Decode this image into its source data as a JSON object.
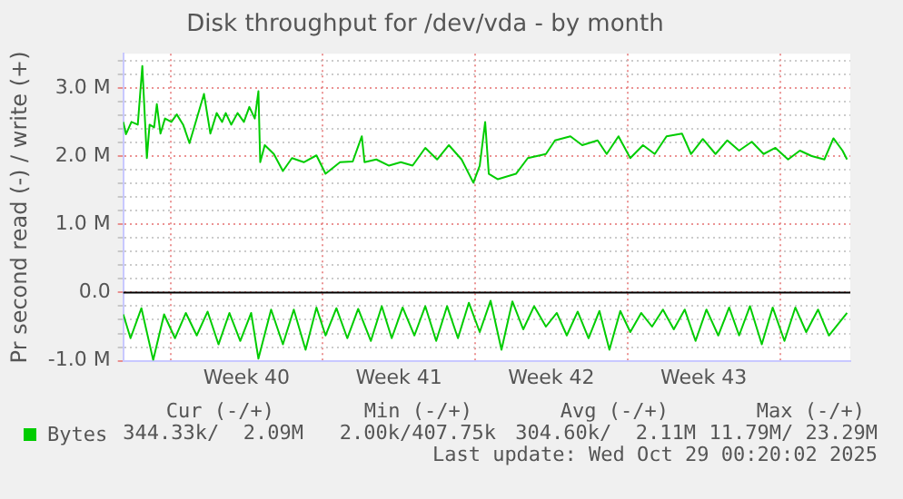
{
  "chart_data": {
    "type": "line",
    "title": "Disk throughput for /dev/vda - by month",
    "ylabel": "Pr second read (-) / write (+)",
    "xlim": [
      "2025-09-25T20:00",
      "2025-10-29T05:36"
    ],
    "ylim": [
      -1.0,
      3.5
    ],
    "xticks": [
      {
        "value": "2025-09-28",
        "label": null
      },
      {
        "value": "2025-10-01T12:00",
        "label": "Week 40"
      },
      {
        "value": "2025-10-05",
        "label": null
      },
      {
        "value": "2025-10-08T12:00",
        "label": "Week 41"
      },
      {
        "value": "2025-10-12",
        "label": null
      },
      {
        "value": "2025-10-15T12:00",
        "label": "Week 42"
      },
      {
        "value": "2025-10-19",
        "label": null
      },
      {
        "value": "2025-10-22T12:00",
        "label": "Week 43"
      },
      {
        "value": "2025-10-26",
        "label": null
      }
    ],
    "yticks": [
      {
        "value": -1.0,
        "label": "-1.0 M"
      },
      {
        "value": -0.8,
        "label": null
      },
      {
        "value": -0.6,
        "label": null
      },
      {
        "value": -0.4,
        "label": null
      },
      {
        "value": -0.2,
        "label": null
      },
      {
        "value": 0,
        "label": "0.0"
      },
      {
        "value": 0.2,
        "label": null
      },
      {
        "value": 0.4,
        "label": null
      },
      {
        "value": 0.6,
        "label": null
      },
      {
        "value": 0.8,
        "label": null
      },
      {
        "value": 1.0,
        "label": "1.0 M"
      },
      {
        "value": 1.2,
        "label": null
      },
      {
        "value": 1.4,
        "label": null
      },
      {
        "value": 1.6,
        "label": null
      },
      {
        "value": 1.8,
        "label": null
      },
      {
        "value": 2.0,
        "label": "2.0 M"
      },
      {
        "value": 2.2,
        "label": null
      },
      {
        "value": 2.4,
        "label": null
      },
      {
        "value": 2.6,
        "label": null
      },
      {
        "value": 2.8,
        "label": null
      },
      {
        "value": 3.0,
        "label": "3.0 M"
      },
      {
        "value": 3.2,
        "label": null
      },
      {
        "value": 3.4,
        "label": null
      }
    ],
    "grid": true,
    "legend": "bottom",
    "marker": "none",
    "line_style": "solid",
    "ref_lines": [
      {
        "axis": "y",
        "value": 0,
        "label": null,
        "color": "#000000"
      }
    ],
    "annotations": [
      "Cur (-/+)",
      "Min (-/+)",
      "Avg (-/+)",
      "Max (-/+)",
      "344.33k/  2.09M",
      "2.00k/407.75k",
      "304.60k/  2.11M",
      "11.79M/ 23.29M",
      "Last update: Wed Oct 29 00:20:02 2025"
    ],
    "series": [
      {
        "name": "Bytes",
        "color": "#00cc00",
        "x": [
          "2025-09-25T20:00",
          "2025-09-25T23:00",
          "2025-09-26T05:00",
          "2025-09-26T12:00",
          "2025-09-26T17:00",
          "2025-09-26T22:00",
          "2025-09-27T01:00",
          "2025-09-27T06:00",
          "2025-09-27T09:00",
          "2025-09-27T13:00",
          "2025-09-27T18:00",
          "2025-09-28T01:00",
          "2025-09-28T07:00",
          "2025-09-28T14:00",
          "2025-09-28T21:00",
          "2025-09-29T03:00",
          "2025-09-29T13:00",
          "2025-09-29T20:00",
          "2025-09-30T03:00",
          "2025-09-30T09:00",
          "2025-09-30T13:00",
          "2025-09-30T19:00",
          "2025-10-01T02:00",
          "2025-10-01T09:00",
          "2025-10-01T15:00",
          "2025-10-01T21:00",
          "2025-10-02T01:00",
          "2025-10-02T03:00",
          "2025-10-02T08:00",
          "2025-10-02T18:00",
          "2025-10-03T04:00",
          "2025-10-03T14:00",
          "2025-10-04T03:00",
          "2025-10-04T17:00",
          "2025-10-05T03:00",
          "2025-10-05T19:00",
          "2025-10-06T09:00",
          "2025-10-06T19:00",
          "2025-10-06T22:00",
          "2025-10-07T11:00",
          "2025-10-08T01:00",
          "2025-10-08T14:00",
          "2025-10-09T03:00",
          "2025-10-09T17:00",
          "2025-10-10T06:00",
          "2025-10-10T19:00",
          "2025-10-11T09:00",
          "2025-10-11T22:00",
          "2025-10-12T05:00",
          "2025-10-12T11:00",
          "2025-10-12T15:00",
          "2025-10-13T01:00",
          "2025-10-13T21:00",
          "2025-10-14T10:00",
          "2025-10-15T06:00",
          "2025-10-15T16:00",
          "2025-10-16T09:00",
          "2025-10-16T22:00",
          "2025-10-17T15:00",
          "2025-10-18T01:00",
          "2025-10-18T14:00",
          "2025-10-19T03:00",
          "2025-10-19T17:00",
          "2025-10-20T06:00",
          "2025-10-20T19:00",
          "2025-10-21T12:00",
          "2025-10-21T22:00",
          "2025-10-22T11:00",
          "2025-10-23T01:00",
          "2025-10-23T14:00",
          "2025-10-24T03:00",
          "2025-10-24T17:00",
          "2025-10-25T06:00",
          "2025-10-25T19:00",
          "2025-10-26T09:00",
          "2025-10-26T22:00",
          "2025-10-27T11:00",
          "2025-10-28T01:00",
          "2025-10-28T11:00",
          "2025-10-28T21:00",
          "2025-10-29T02:00"
        ],
        "values": [
          2.5,
          2.32,
          2.5,
          2.46,
          3.32,
          1.97,
          2.46,
          2.42,
          2.76,
          2.33,
          2.55,
          2.5,
          2.61,
          2.46,
          2.19,
          2.46,
          2.91,
          2.33,
          2.63,
          2.5,
          2.63,
          2.46,
          2.63,
          2.5,
          2.72,
          2.55,
          2.95,
          1.91,
          2.16,
          2.03,
          1.78,
          1.97,
          1.91,
          2.01,
          1.74,
          1.91,
          1.92,
          2.29,
          1.91,
          1.95,
          1.86,
          1.91,
          1.86,
          2.12,
          1.95,
          2.16,
          1.95,
          1.61,
          1.86,
          2.5,
          1.74,
          1.66,
          1.74,
          1.97,
          2.03,
          2.23,
          2.29,
          2.16,
          2.23,
          2.03,
          2.29,
          1.97,
          2.16,
          2.03,
          2.29,
          2.33,
          2.03,
          2.25,
          2.03,
          2.23,
          2.08,
          2.21,
          2.03,
          2.12,
          1.95,
          2.08,
          2.0,
          1.95,
          2.26,
          2.08,
          1.95
        ]
      },
      {
        "color": "#00cc00",
        "x": [
          "2025-09-25T20:00",
          "2025-09-26T04:00",
          "2025-09-26T16:00",
          "2025-09-27T05:00",
          "2025-09-27T17:00",
          "2025-09-28T05:00",
          "2025-09-28T17:00",
          "2025-09-29T05:00",
          "2025-09-29T17:00",
          "2025-09-30T05:00",
          "2025-09-30T17:00",
          "2025-10-01T05:00",
          "2025-10-01T17:00",
          "2025-10-02T01:00",
          "2025-10-02T15:00",
          "2025-10-03T04:00",
          "2025-10-03T16:00",
          "2025-10-04T05:00",
          "2025-10-04T17:00",
          "2025-10-05T03:00",
          "2025-10-05T15:00",
          "2025-10-06T03:00",
          "2025-10-06T15:00",
          "2025-10-07T05:00",
          "2025-10-07T17:00",
          "2025-10-08T04:00",
          "2025-10-08T16:00",
          "2025-10-09T05:00",
          "2025-10-09T17:00",
          "2025-10-10T05:00",
          "2025-10-10T17:00",
          "2025-10-11T05:00",
          "2025-10-11T17:00",
          "2025-10-12T05:00",
          "2025-10-12T17:00",
          "2025-10-13T05:00",
          "2025-10-13T17:00",
          "2025-10-14T05:00",
          "2025-10-14T17:00",
          "2025-10-15T06:00",
          "2025-10-15T18:00",
          "2025-10-16T05:00",
          "2025-10-16T17:00",
          "2025-10-17T05:00",
          "2025-10-17T17:00",
          "2025-10-18T04:00",
          "2025-10-18T16:00",
          "2025-10-19T03:00",
          "2025-10-19T15:00",
          "2025-10-20T03:00",
          "2025-10-20T15:00",
          "2025-10-21T03:00",
          "2025-10-21T15:00",
          "2025-10-22T03:00",
          "2025-10-22T15:00",
          "2025-10-23T04:00",
          "2025-10-23T16:00",
          "2025-10-24T03:00",
          "2025-10-24T15:00",
          "2025-10-25T04:00",
          "2025-10-25T16:00",
          "2025-10-26T05:00",
          "2025-10-26T17:00",
          "2025-10-27T05:00",
          "2025-10-27T18:00",
          "2025-10-28T06:00",
          "2025-10-29T02:00"
        ],
        "values": [
          -0.32,
          -0.67,
          -0.23,
          -0.99,
          -0.32,
          -0.67,
          -0.3,
          -0.63,
          -0.28,
          -0.76,
          -0.3,
          -0.71,
          -0.3,
          -0.97,
          -0.25,
          -0.76,
          -0.25,
          -0.84,
          -0.22,
          -0.63,
          -0.23,
          -0.67,
          -0.24,
          -0.71,
          -0.2,
          -0.67,
          -0.22,
          -0.63,
          -0.2,
          -0.71,
          -0.2,
          -0.67,
          -0.15,
          -0.58,
          -0.12,
          -0.84,
          -0.13,
          -0.54,
          -0.2,
          -0.5,
          -0.3,
          -0.63,
          -0.28,
          -0.67,
          -0.27,
          -0.84,
          -0.27,
          -0.58,
          -0.3,
          -0.5,
          -0.25,
          -0.54,
          -0.25,
          -0.71,
          -0.25,
          -0.63,
          -0.22,
          -0.63,
          -0.2,
          -0.76,
          -0.22,
          -0.71,
          -0.22,
          -0.58,
          -0.25,
          -0.63,
          -0.3
        ]
      }
    ]
  }
}
